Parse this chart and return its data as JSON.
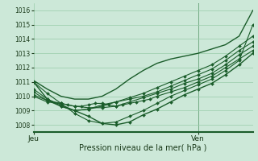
{
  "xlabel": "Pression niveau de la mer( hPa )",
  "background_color": "#cce8d8",
  "grid_color": "#99ccaa",
  "line_color": "#1a5c2a",
  "tick_color": "#1a3a1a",
  "ylim": [
    1007.5,
    1016.5
  ],
  "xlim": [
    0,
    32
  ],
  "jeu_x": 0,
  "ven_x": 24,
  "ytick_positions": [
    1008,
    1009,
    1010,
    1011,
    1012,
    1013,
    1014,
    1015,
    1016
  ],
  "xtick_positions": [
    0,
    24
  ],
  "xtick_labels": [
    "Jeu",
    "Ven"
  ],
  "vline_x": 24,
  "series": [
    {
      "x": [
        0,
        2,
        4,
        6,
        8,
        10,
        12,
        14,
        16,
        18,
        20,
        22,
        24,
        26,
        28,
        30,
        32
      ],
      "y": [
        1011.1,
        1010.5,
        1010.0,
        1009.8,
        1009.8,
        1010.0,
        1010.5,
        1011.2,
        1011.8,
        1012.3,
        1012.6,
        1012.8,
        1013.0,
        1013.3,
        1013.6,
        1014.2,
        1016.0
      ],
      "marker": false,
      "lw": 1.0
    },
    {
      "x": [
        0,
        2,
        4,
        6,
        8,
        10,
        12,
        14,
        16,
        18,
        20,
        22,
        24,
        26,
        28,
        30,
        32
      ],
      "y": [
        1011.0,
        1010.2,
        1009.5,
        1008.8,
        1008.3,
        1008.1,
        1008.2,
        1008.6,
        1009.0,
        1009.5,
        1010.0,
        1010.4,
        1010.8,
        1011.2,
        1011.8,
        1012.5,
        1015.0
      ],
      "marker": true,
      "lw": 0.8
    },
    {
      "x": [
        0,
        2,
        4,
        6,
        8,
        10,
        12,
        14,
        16,
        18,
        20,
        22,
        24,
        26,
        28,
        30,
        32
      ],
      "y": [
        1010.5,
        1009.8,
        1009.4,
        1009.0,
        1009.1,
        1009.3,
        1009.6,
        1009.9,
        1010.2,
        1010.6,
        1011.0,
        1011.4,
        1011.8,
        1012.2,
        1012.8,
        1013.5,
        1014.2
      ],
      "marker": true,
      "lw": 0.8
    },
    {
      "x": [
        0,
        2,
        4,
        6,
        8,
        10,
        12,
        14,
        16,
        18,
        20,
        22,
        24,
        26,
        28,
        30,
        32
      ],
      "y": [
        1010.3,
        1009.7,
        1009.3,
        1009.0,
        1009.1,
        1009.4,
        1009.6,
        1009.8,
        1010.0,
        1010.3,
        1010.7,
        1011.1,
        1011.5,
        1011.9,
        1012.5,
        1013.2,
        1013.8
      ],
      "marker": true,
      "lw": 0.8
    },
    {
      "x": [
        0,
        2,
        4,
        6,
        8,
        10,
        12,
        14,
        16,
        18,
        20,
        22,
        24,
        26,
        28,
        30,
        32
      ],
      "y": [
        1010.1,
        1009.7,
        1009.5,
        1009.3,
        1009.2,
        1009.2,
        1009.3,
        1009.6,
        1009.9,
        1010.2,
        1010.5,
        1010.9,
        1011.2,
        1011.6,
        1012.2,
        1012.9,
        1013.5
      ],
      "marker": true,
      "lw": 0.8
    },
    {
      "x": [
        0,
        2,
        4,
        5,
        6,
        7,
        8,
        9,
        10,
        11,
        12,
        13,
        14,
        15,
        16,
        17,
        18,
        20,
        22,
        24,
        26,
        28,
        30,
        32
      ],
      "y": [
        1010.0,
        1009.6,
        1009.5,
        1009.4,
        1009.3,
        1009.3,
        1009.4,
        1009.5,
        1009.5,
        1009.4,
        1009.3,
        1009.4,
        1009.5,
        1009.6,
        1009.7,
        1009.8,
        1010.0,
        1010.3,
        1010.6,
        1011.0,
        1011.4,
        1012.0,
        1012.6,
        1013.2
      ],
      "marker": true,
      "lw": 0.8
    }
  ],
  "special_series": {
    "x": [
      0,
      2,
      4,
      6,
      8,
      10,
      12,
      14,
      16,
      18,
      20,
      22,
      24,
      26,
      28,
      30,
      32
    ],
    "y": [
      1011.0,
      1009.8,
      1009.3,
      1009.0,
      1008.6,
      1008.1,
      1008.0,
      1008.2,
      1008.7,
      1009.1,
      1009.6,
      1010.1,
      1010.5,
      1010.9,
      1011.5,
      1012.2,
      1013.0
    ],
    "marker": true,
    "lw": 1.0
  }
}
